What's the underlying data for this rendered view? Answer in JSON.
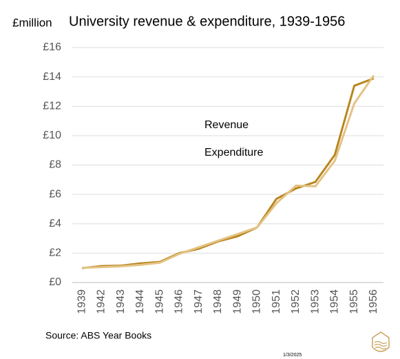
{
  "chart_data": {
    "type": "line",
    "title": "University revenue & expenditure, 1939-1956",
    "y_label": "£million",
    "source": "Source: ABS Year Books",
    "date": "1/3/2025",
    "categories": [
      "1939",
      "1942",
      "1943",
      "1944",
      "1945",
      "1946",
      "1947",
      "1948",
      "1949",
      "1950",
      "1951",
      "1952",
      "1953",
      "1954",
      "1955",
      "1956"
    ],
    "series": [
      {
        "name": "Revenue",
        "color": "#b8861e",
        "values": [
          0.98,
          1.12,
          1.15,
          1.3,
          1.4,
          2.0,
          2.3,
          2.8,
          3.15,
          3.75,
          5.7,
          6.4,
          6.85,
          8.7,
          13.4,
          13.9
        ]
      },
      {
        "name": "Expenditure",
        "color": "#e3c283",
        "values": [
          1.0,
          1.05,
          1.1,
          1.2,
          1.35,
          1.95,
          2.4,
          2.85,
          3.3,
          3.75,
          5.4,
          6.6,
          6.55,
          8.3,
          12.2,
          14.1
        ]
      }
    ],
    "ylim": [
      0,
      16
    ],
    "yticks": [
      {
        "value": 0,
        "label": "£0"
      },
      {
        "value": 2,
        "label": "£2"
      },
      {
        "value": 4,
        "label": "£4"
      },
      {
        "value": 6,
        "label": "£6"
      },
      {
        "value": 8,
        "label": "£8"
      },
      {
        "value": 10,
        "label": "£10"
      },
      {
        "value": 12,
        "label": "£12"
      },
      {
        "value": 14,
        "label": "£14"
      },
      {
        "value": 16,
        "label": "£16"
      }
    ],
    "grid": true
  }
}
